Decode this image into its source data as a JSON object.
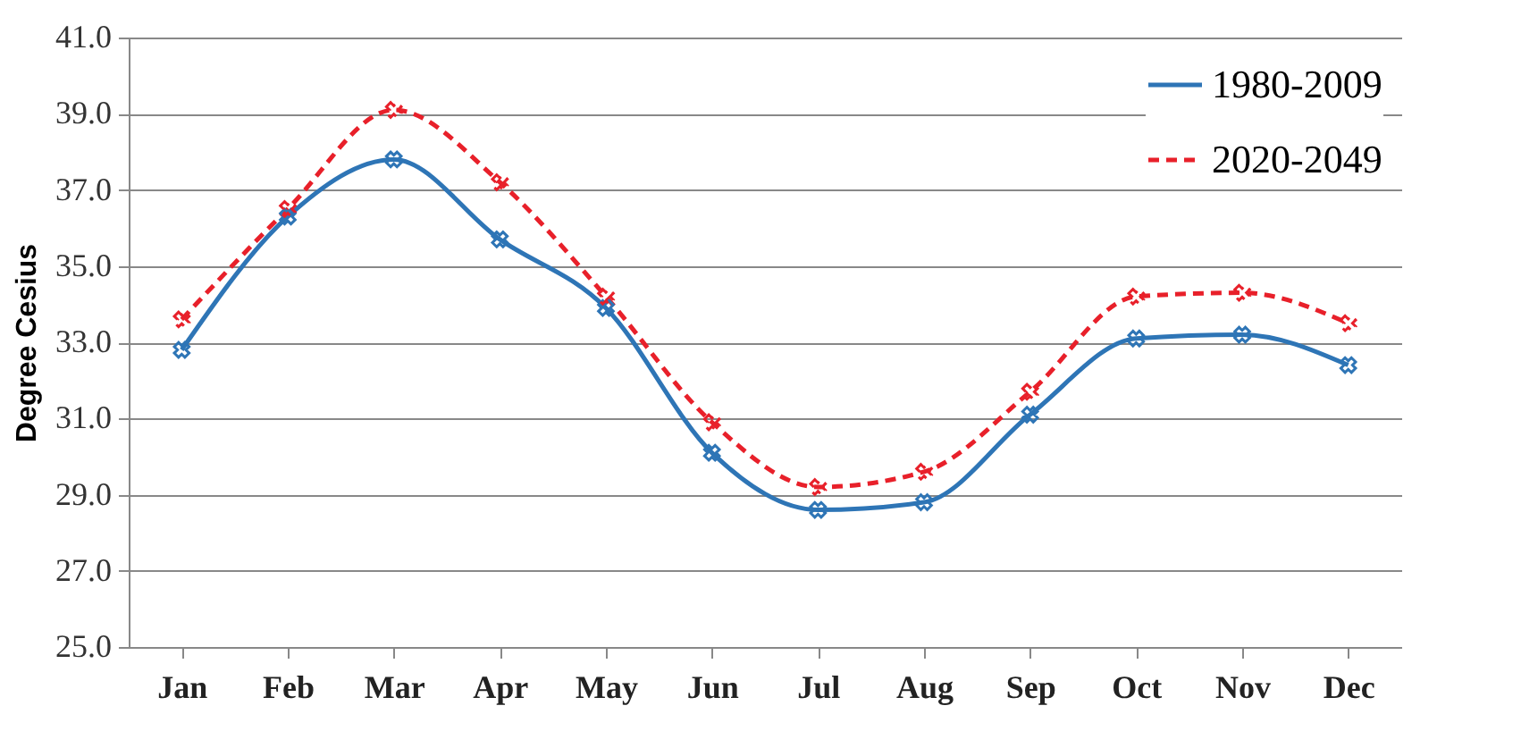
{
  "chart_data": {
    "type": "line",
    "ylabel": "Degree Cesius",
    "categories": [
      "Jan",
      "Feb",
      "Mar",
      "Apr",
      "May",
      "Jun",
      "Jul",
      "Aug",
      "Sep",
      "Oct",
      "Nov",
      "Dec"
    ],
    "series": [
      {
        "name": "1980-2009",
        "color": "#2e75b6",
        "line_style": "solid",
        "values": [
          32.8,
          36.3,
          37.8,
          35.7,
          33.9,
          30.1,
          28.6,
          28.8,
          31.1,
          33.1,
          33.2,
          32.4
        ]
      },
      {
        "name": "2020-2049",
        "color": "#e8202a",
        "line_style": "dashed",
        "values": [
          33.6,
          36.5,
          39.1,
          37.2,
          34.2,
          30.9,
          29.2,
          29.6,
          31.7,
          34.2,
          34.3,
          33.5
        ]
      }
    ],
    "ylim": [
      25,
      41
    ],
    "yticks": [
      {
        "value": 25,
        "label": "25.0"
      },
      {
        "value": 27,
        "label": "27.0"
      },
      {
        "value": 29,
        "label": "29.0"
      },
      {
        "value": 31,
        "label": "31.0"
      },
      {
        "value": 33,
        "label": "33.0"
      },
      {
        "value": 35,
        "label": "35.0"
      },
      {
        "value": 37,
        "label": "37.0"
      },
      {
        "value": 39,
        "label": "39.0"
      },
      {
        "value": 41,
        "label": "41.0"
      }
    ],
    "grid": "y",
    "legend": "top right",
    "marker": "cross"
  }
}
